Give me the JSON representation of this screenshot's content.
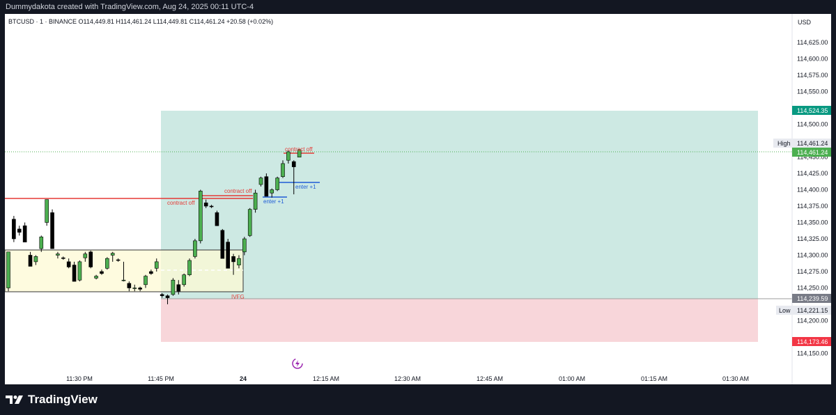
{
  "header": {
    "text": "Dummydakota created with TradingView.com, Aug 24, 2025 00:11 UTC-4"
  },
  "legend": {
    "text": "BTCUSD · 1 · BINANCE  O114,449.81  H114,461.24  L114,449.81  C114,461.24  +20.58 (+0.02%)"
  },
  "axis": {
    "currency": "USD",
    "price_ticks": [
      "114,625.00",
      "114,600.00",
      "114,575.00",
      "114,550.00",
      "114,500.00",
      "114,450.00",
      "114,425.00",
      "114,400.00",
      "114,375.00",
      "114,350.00",
      "114,325.00",
      "114,300.00",
      "114,275.00",
      "114,250.00",
      "114,200.00",
      "114,150.00"
    ],
    "time_ticks": [
      "11:30 PM",
      "11:45 PM",
      "24",
      "12:15 AM",
      "12:30 AM",
      "12:45 AM",
      "01:00 AM",
      "01:15 AM",
      "01:30 AM"
    ]
  },
  "price_labels": {
    "tp": "114,524.35",
    "high_label": "High",
    "high": "114,461.24",
    "current": "114,461.24",
    "entry": "114,239.59",
    "low_label": "Low",
    "low": "114,221.15",
    "sl": "114,173.46"
  },
  "annotations": {
    "contract_off_1": "contract off",
    "contract_off_2": "contract off",
    "contract_off_3": "contract off",
    "enter_1": "enter +1",
    "enter_2": "enter +1",
    "ivfg": "IVFG"
  },
  "footer": {
    "brand": "TradingView"
  },
  "colors": {
    "up": "#4caf50",
    "down": "#000000",
    "tp_zone": "#cde9e3",
    "sl_zone": "#f8d6da",
    "fvg_zone": "#fdf9d4",
    "red_line": "#e53935",
    "blue_line": "#1e5bd6",
    "tp_label": "#089981",
    "current_label": "#4caf50",
    "sl_label": "#f23645",
    "entry_label": "#787b86"
  },
  "chart_data": {
    "type": "candlestick",
    "symbol": "BTCUSD",
    "interval": "1",
    "exchange": "BINANCE",
    "ylim": [
      114150,
      114625
    ],
    "candles": [
      {
        "o": 114250,
        "h": 114305,
        "l": 114245,
        "c": 114305
      },
      {
        "o": 114355,
        "h": 114360,
        "l": 114320,
        "c": 114325
      },
      {
        "o": 114340,
        "h": 114345,
        "l": 114330,
        "c": 114335
      },
      {
        "o": 114345,
        "h": 114350,
        "l": 114320,
        "c": 114320
      },
      {
        "o": 114300,
        "h": 114305,
        "l": 114283,
        "c": 114283
      },
      {
        "o": 114290,
        "h": 114300,
        "l": 114285,
        "c": 114298
      },
      {
        "o": 114310,
        "h": 114330,
        "l": 114305,
        "c": 114328
      },
      {
        "o": 114350,
        "h": 114385,
        "l": 114345,
        "c": 114385
      },
      {
        "o": 114365,
        "h": 114370,
        "l": 114310,
        "c": 114310
      },
      {
        "o": 114300,
        "h": 114305,
        "l": 114295,
        "c": 114302
      },
      {
        "o": 114296,
        "h": 114298,
        "l": 114293,
        "c": 114295
      },
      {
        "o": 114290,
        "h": 114295,
        "l": 114280,
        "c": 114282
      },
      {
        "o": 114285,
        "h": 114290,
        "l": 114260,
        "c": 114260
      },
      {
        "o": 114262,
        "h": 114292,
        "l": 114260,
        "c": 114290
      },
      {
        "o": 114296,
        "h": 114305,
        "l": 114290,
        "c": 114302
      },
      {
        "o": 114305,
        "h": 114307,
        "l": 114280,
        "c": 114282
      },
      {
        "o": 114265,
        "h": 114270,
        "l": 114263,
        "c": 114268
      },
      {
        "o": 114275,
        "h": 114278,
        "l": 114270,
        "c": 114272
      },
      {
        "o": 114280,
        "h": 114297,
        "l": 114278,
        "c": 114295
      },
      {
        "o": 114300,
        "h": 114305,
        "l": 114290,
        "c": 114303
      },
      {
        "o": 114293,
        "h": 114295,
        "l": 114290,
        "c": 114292
      },
      {
        "o": 114262,
        "h": 114290,
        "l": 114260,
        "c": 114262
      },
      {
        "o": 114257,
        "h": 114260,
        "l": 114245,
        "c": 114250
      },
      {
        "o": 114250,
        "h": 114255,
        "l": 114245,
        "c": 114250
      },
      {
        "o": 114250,
        "h": 114252,
        "l": 114245,
        "c": 114248
      },
      {
        "o": 114255,
        "h": 114270,
        "l": 114250,
        "c": 114268
      },
      {
        "o": 114275,
        "h": 114278,
        "l": 114270,
        "c": 114272
      },
      {
        "o": 114280,
        "h": 114295,
        "l": 114275,
        "c": 114290
      },
      {
        "o": 114240,
        "h": 114242,
        "l": 114235,
        "c": 114238
      },
      {
        "o": 114238,
        "h": 114240,
        "l": 114225,
        "c": 114235
      },
      {
        "o": 114240,
        "h": 114265,
        "l": 114238,
        "c": 114262
      },
      {
        "o": 114255,
        "h": 114262,
        "l": 114240,
        "c": 114245
      },
      {
        "o": 114255,
        "h": 114272,
        "l": 114252,
        "c": 114270
      },
      {
        "o": 114270,
        "h": 114295,
        "l": 114268,
        "c": 114292
      },
      {
        "o": 114298,
        "h": 114325,
        "l": 114295,
        "c": 114322
      },
      {
        "o": 114322,
        "h": 114400,
        "l": 114318,
        "c": 114398
      },
      {
        "o": 114380,
        "h": 114385,
        "l": 114372,
        "c": 114375
      },
      {
        "o": 114375,
        "h": 114377,
        "l": 114372,
        "c": 114374
      },
      {
        "o": 114365,
        "h": 114368,
        "l": 114345,
        "c": 114345
      },
      {
        "o": 114338,
        "h": 114340,
        "l": 114295,
        "c": 114295
      },
      {
        "o": 114320,
        "h": 114325,
        "l": 114280,
        "c": 114280
      },
      {
        "o": 114298,
        "h": 114302,
        "l": 114270,
        "c": 114290
      },
      {
        "o": 114285,
        "h": 114300,
        "l": 114280,
        "c": 114295
      },
      {
        "o": 114305,
        "h": 114328,
        "l": 114300,
        "c": 114325
      },
      {
        "o": 114330,
        "h": 114372,
        "l": 114328,
        "c": 114370
      },
      {
        "o": 114370,
        "h": 114400,
        "l": 114365,
        "c": 114395
      },
      {
        "o": 114408,
        "h": 114420,
        "l": 114405,
        "c": 114418
      },
      {
        "o": 114420,
        "h": 114425,
        "l": 114390,
        "c": 114390
      },
      {
        "o": 114395,
        "h": 114402,
        "l": 114388,
        "c": 114400
      },
      {
        "o": 114400,
        "h": 114420,
        "l": 114398,
        "c": 114418
      },
      {
        "o": 114420,
        "h": 114445,
        "l": 114418,
        "c": 114440
      },
      {
        "o": 114445,
        "h": 114460,
        "l": 114440,
        "c": 114458
      },
      {
        "o": 114443,
        "h": 114445,
        "l": 114393,
        "c": 114435
      },
      {
        "o": 114449.81,
        "h": 114461.24,
        "l": 114449.81,
        "c": 114461.24
      }
    ]
  }
}
